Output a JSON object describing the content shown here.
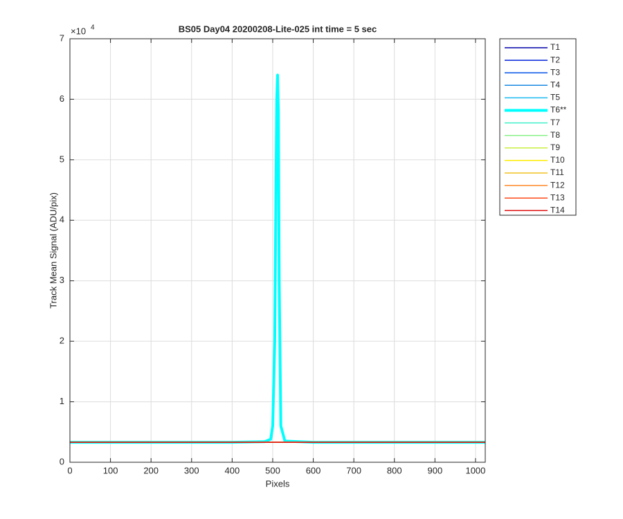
{
  "chart_data": {
    "type": "line",
    "title": "BS05 Day04 20200208-Lite-025 int time = 5 sec",
    "xlabel": "Pixels",
    "ylabel": "Track Mean Signal (ADU/pix)",
    "y_multiplier": {
      "base": "×10",
      "exponent": "4"
    },
    "x": [
      0,
      100,
      200,
      300,
      400,
      480,
      495,
      500,
      505,
      508,
      510,
      512,
      514,
      516,
      520,
      530,
      600,
      700,
      800,
      900,
      1000,
      1024
    ],
    "xlim": [
      0,
      1024
    ],
    "ylim": [
      0,
      70000
    ],
    "xticks": [
      0,
      100,
      200,
      300,
      400,
      500,
      600,
      700,
      800,
      900,
      1000
    ],
    "yticks": [
      {
        "value": 0,
        "label": "0"
      },
      {
        "value": 10000,
        "label": "1"
      },
      {
        "value": 20000,
        "label": "2"
      },
      {
        "value": 30000,
        "label": "3"
      },
      {
        "value": 40000,
        "label": "4"
      },
      {
        "value": 50000,
        "label": "5"
      },
      {
        "value": 60000,
        "label": "6"
      },
      {
        "value": 70000,
        "label": "7"
      }
    ],
    "grid": true,
    "legend": "northeastoutside",
    "series": [
      {
        "name": "T1",
        "color": "#0000a8",
        "width": 1.5,
        "values": [
          3300,
          3300,
          3300,
          3300,
          3300,
          3300,
          3300,
          3300,
          3300,
          3300,
          3300,
          3300,
          3300,
          3300,
          3300,
          3300,
          3300,
          3300,
          3300,
          3300,
          3300,
          3300
        ]
      },
      {
        "name": "T2",
        "color": "#0020d8",
        "width": 1.5,
        "values": [
          3300,
          3300,
          3300,
          3300,
          3300,
          3300,
          3300,
          3300,
          3300,
          3300,
          3300,
          3300,
          3300,
          3300,
          3300,
          3300,
          3300,
          3300,
          3300,
          3300,
          3300,
          3300
        ]
      },
      {
        "name": "T3",
        "color": "#0050e8",
        "width": 1.5,
        "values": [
          3300,
          3300,
          3300,
          3300,
          3300,
          3300,
          3300,
          3300,
          3300,
          3300,
          3300,
          3300,
          3300,
          3300,
          3300,
          3300,
          3300,
          3300,
          3300,
          3300,
          3300,
          3300
        ]
      },
      {
        "name": "T4",
        "color": "#1888e0",
        "width": 1.5,
        "values": [
          3300,
          3300,
          3300,
          3300,
          3300,
          3300,
          3300,
          3300,
          3300,
          3300,
          3300,
          3300,
          3300,
          3300,
          3300,
          3300,
          3300,
          3300,
          3300,
          3300,
          3300,
          3300
        ]
      },
      {
        "name": "T5",
        "color": "#18b8f0",
        "width": 1.5,
        "values": [
          3300,
          3300,
          3300,
          3300,
          3300,
          3300,
          3300,
          3300,
          3300,
          3300,
          3300,
          3300,
          3300,
          3300,
          3300,
          3300,
          3300,
          3300,
          3300,
          3300,
          3300,
          3300
        ]
      },
      {
        "name": "T6**",
        "color": "#00ffff",
        "width": 4,
        "values": [
          3300,
          3300,
          3300,
          3300,
          3300,
          3400,
          3800,
          6000,
          20000,
          45000,
          60000,
          64000,
          58000,
          30000,
          6000,
          3500,
          3300,
          3300,
          3300,
          3300,
          3300,
          3300
        ]
      },
      {
        "name": "T7",
        "color": "#40f0c8",
        "width": 1.5,
        "values": [
          3300,
          3300,
          3300,
          3300,
          3300,
          3300,
          3300,
          3300,
          3300,
          3300,
          3300,
          3300,
          3300,
          3300,
          3300,
          3300,
          3300,
          3300,
          3300,
          3300,
          3300,
          3300
        ]
      },
      {
        "name": "T8",
        "color": "#88f088",
        "width": 1.5,
        "values": [
          3300,
          3300,
          3300,
          3300,
          3300,
          3300,
          3300,
          3300,
          3300,
          3300,
          3300,
          3300,
          3300,
          3300,
          3300,
          3300,
          3300,
          3300,
          3300,
          3300,
          3300,
          3300
        ]
      },
      {
        "name": "T9",
        "color": "#c8f040",
        "width": 1.5,
        "values": [
          3300,
          3300,
          3300,
          3300,
          3300,
          3300,
          3300,
          3300,
          3300,
          3300,
          3300,
          3300,
          3300,
          3300,
          3300,
          3300,
          3300,
          3300,
          3300,
          3300,
          3300,
          3300
        ]
      },
      {
        "name": "T10",
        "color": "#ffee00",
        "width": 1.5,
        "values": [
          3300,
          3300,
          3300,
          3300,
          3300,
          3300,
          3300,
          3300,
          3300,
          3300,
          3300,
          3300,
          3300,
          3300,
          3300,
          3300,
          3300,
          3300,
          3300,
          3300,
          3300,
          3300
        ]
      },
      {
        "name": "T11",
        "color": "#f0c020",
        "width": 1.5,
        "values": [
          3300,
          3300,
          3300,
          3300,
          3300,
          3300,
          3300,
          3300,
          3300,
          3300,
          3300,
          3300,
          3300,
          3300,
          3300,
          3300,
          3300,
          3300,
          3300,
          3300,
          3300,
          3300
        ]
      },
      {
        "name": "T12",
        "color": "#ff8828",
        "width": 1.5,
        "values": [
          3300,
          3300,
          3300,
          3300,
          3300,
          3300,
          3300,
          3300,
          3300,
          3300,
          3300,
          3300,
          3300,
          3300,
          3300,
          3300,
          3300,
          3300,
          3300,
          3300,
          3300,
          3300
        ]
      },
      {
        "name": "T13",
        "color": "#ff4818",
        "width": 1.5,
        "values": [
          3300,
          3300,
          3300,
          3300,
          3300,
          3300,
          3300,
          3300,
          3300,
          3300,
          3300,
          3300,
          3300,
          3300,
          3300,
          3300,
          3300,
          3300,
          3300,
          3300,
          3300,
          3300
        ]
      },
      {
        "name": "T14",
        "color": "#e01010",
        "width": 1.5,
        "values": [
          3300,
          3300,
          3300,
          3300,
          3300,
          3300,
          3300,
          3300,
          3300,
          3300,
          3300,
          3300,
          3300,
          3300,
          3300,
          3300,
          3300,
          3300,
          3300,
          3300,
          3300,
          3300
        ]
      }
    ]
  }
}
